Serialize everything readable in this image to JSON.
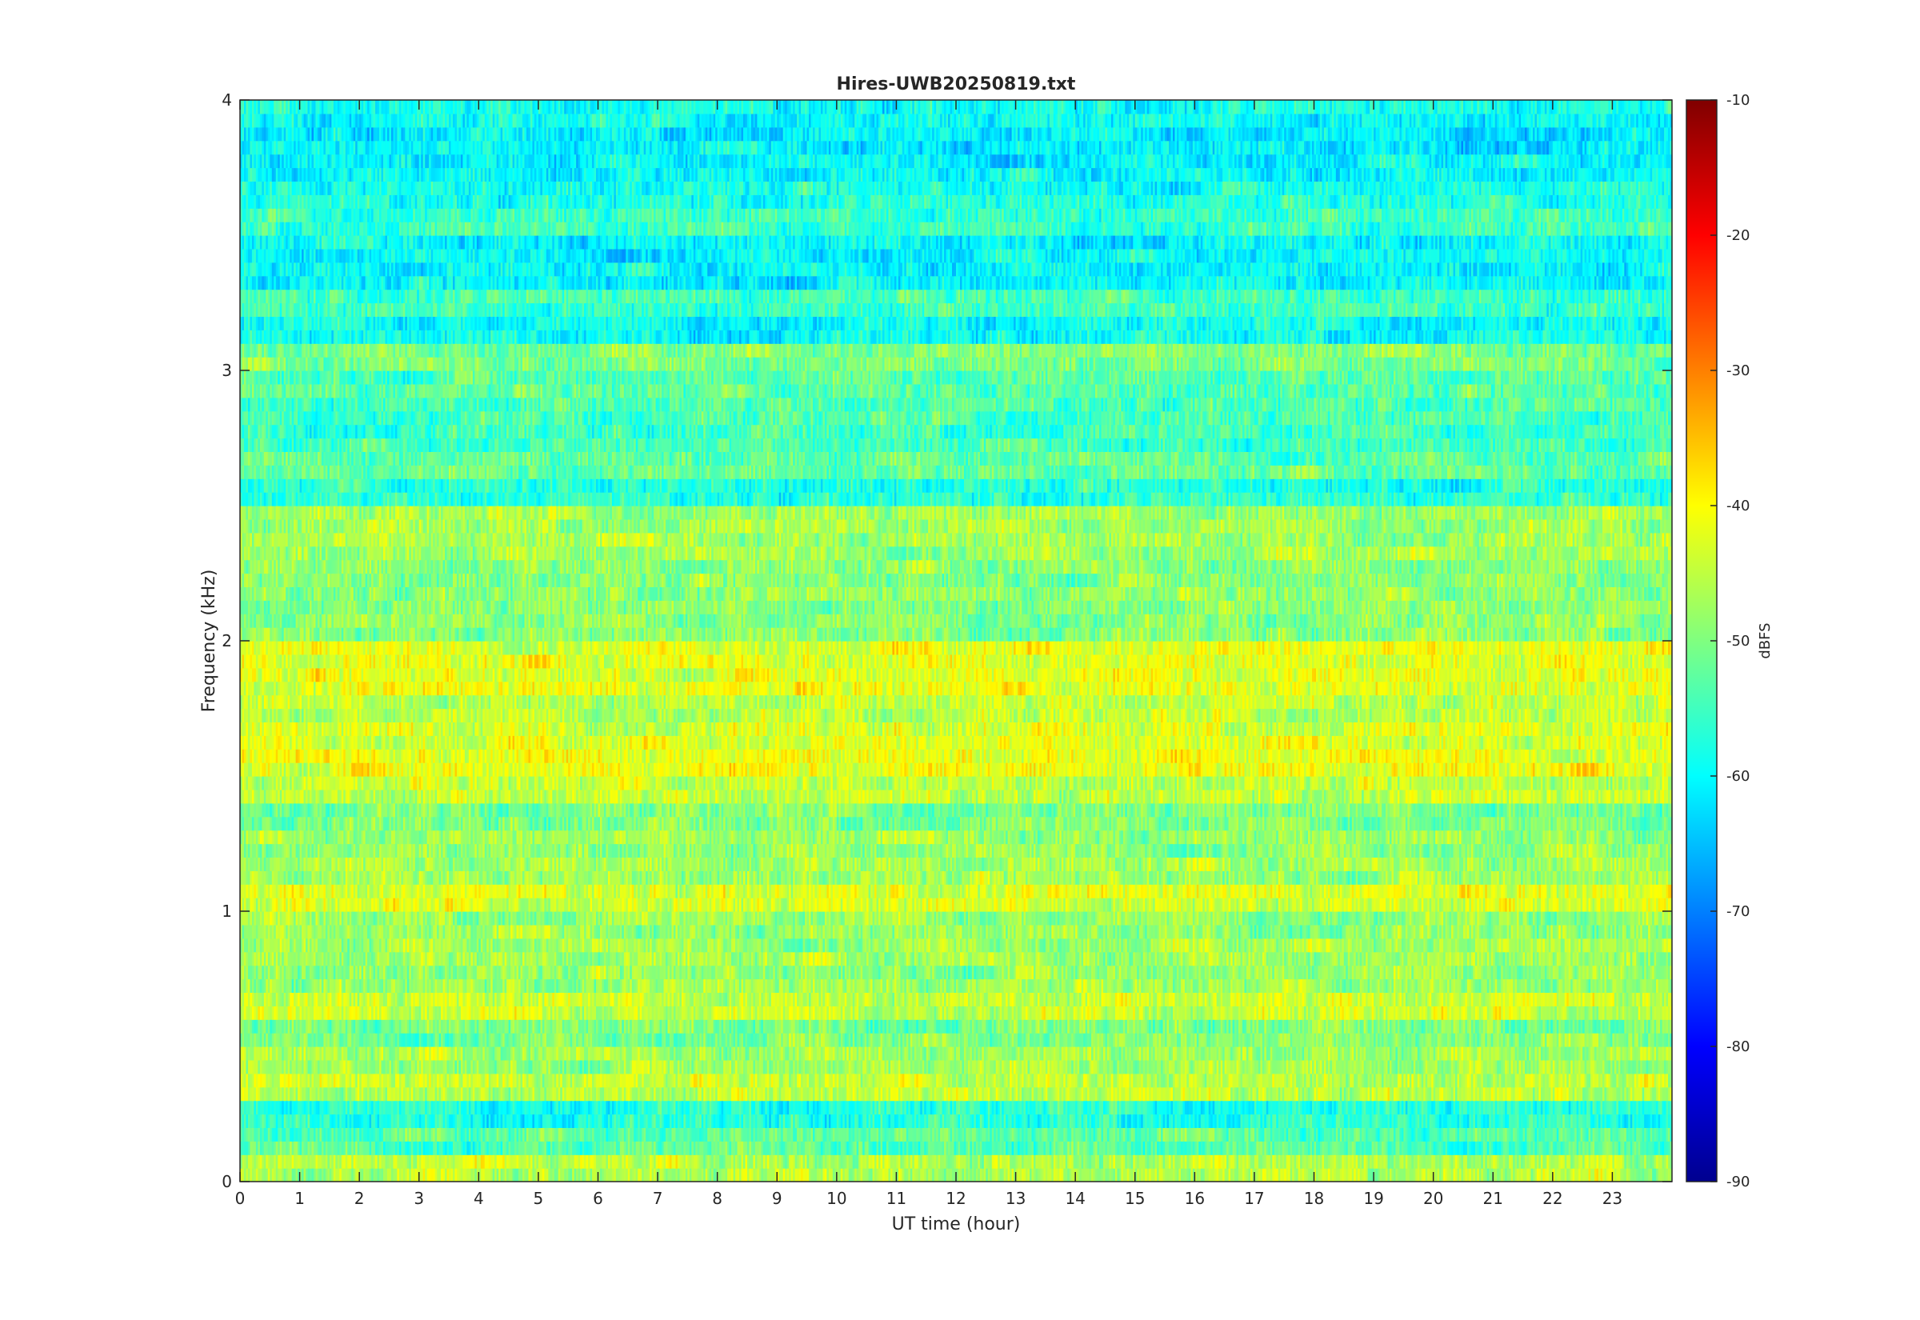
{
  "chart_data": {
    "type": "heatmap",
    "title": "Hires-UWB20250819.txt",
    "xlabel": "UT time (hour)",
    "ylabel": "Frequency (kHz)",
    "xlim": [
      0,
      24
    ],
    "ylim": [
      0,
      4
    ],
    "x_ticks": [
      0,
      1,
      2,
      3,
      4,
      5,
      6,
      7,
      8,
      9,
      10,
      11,
      12,
      13,
      14,
      15,
      16,
      17,
      18,
      19,
      20,
      21,
      22,
      23
    ],
    "y_ticks": [
      0,
      1,
      2,
      3,
      4
    ],
    "colorbar": {
      "label": "dBFS",
      "clim": [
        -90,
        -10
      ],
      "ticks": [
        -90,
        -80,
        -70,
        -60,
        -50,
        -40,
        -30,
        -20,
        -10
      ],
      "colormap": "jet",
      "colors": [
        "#00008f",
        "#0000ff",
        "#00ffff",
        "#ffff00",
        "#ff0000",
        "#800000"
      ],
      "placement": "right"
    },
    "grid": false,
    "bands": [
      {
        "f": 0.05,
        "db": -43
      },
      {
        "f": 0.15,
        "db": -50
      },
      {
        "f": 0.25,
        "db": -54
      },
      {
        "f": 0.35,
        "db": -42
      },
      {
        "f": 0.45,
        "db": -44
      },
      {
        "f": 0.55,
        "db": -47
      },
      {
        "f": 0.65,
        "db": -41
      },
      {
        "f": 0.75,
        "db": -45
      },
      {
        "f": 0.85,
        "db": -44
      },
      {
        "f": 0.95,
        "db": -45
      },
      {
        "f": 1.05,
        "db": -40
      },
      {
        "f": 1.15,
        "db": -44
      },
      {
        "f": 1.25,
        "db": -45
      },
      {
        "f": 1.35,
        "db": -47
      },
      {
        "f": 1.45,
        "db": -42
      },
      {
        "f": 1.55,
        "db": -38
      },
      {
        "f": 1.65,
        "db": -40
      },
      {
        "f": 1.75,
        "db": -42
      },
      {
        "f": 1.85,
        "db": -39
      },
      {
        "f": 1.95,
        "db": -39
      },
      {
        "f": 2.05,
        "db": -46
      },
      {
        "f": 2.15,
        "db": -46
      },
      {
        "f": 2.25,
        "db": -46
      },
      {
        "f": 2.35,
        "db": -44
      },
      {
        "f": 2.45,
        "db": -44
      },
      {
        "f": 2.55,
        "db": -54
      },
      {
        "f": 2.65,
        "db": -49
      },
      {
        "f": 2.75,
        "db": -52
      },
      {
        "f": 2.85,
        "db": -51
      },
      {
        "f": 2.95,
        "db": -50
      },
      {
        "f": 3.05,
        "db": -47
      },
      {
        "f": 3.15,
        "db": -56
      },
      {
        "f": 3.25,
        "db": -52
      },
      {
        "f": 3.35,
        "db": -57
      },
      {
        "f": 3.45,
        "db": -57
      },
      {
        "f": 3.55,
        "db": -52
      },
      {
        "f": 3.65,
        "db": -55
      },
      {
        "f": 3.75,
        "db": -57
      },
      {
        "f": 3.85,
        "db": -58
      },
      {
        "f": 3.95,
        "db": -56
      }
    ]
  }
}
